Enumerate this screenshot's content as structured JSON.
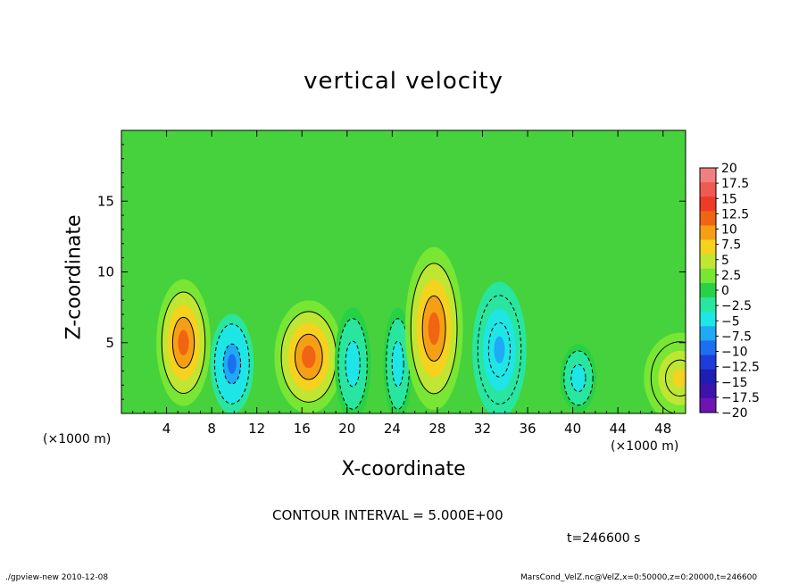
{
  "chart_data": {
    "type": "heatmap",
    "title": "vertical velocity",
    "xlabel": "X-coordinate",
    "ylabel": "Z-coordinate",
    "x_unit": "(×1000 m)",
    "y_unit": "(×1000 m)",
    "xlim": [
      0,
      50
    ],
    "ylim": [
      0,
      20
    ],
    "x_ticks": [
      "4",
      "8",
      "12",
      "16",
      "20",
      "24",
      "28",
      "32",
      "36",
      "40",
      "44",
      "48"
    ],
    "x_tick_values": [
      4,
      8,
      12,
      16,
      20,
      24,
      28,
      32,
      36,
      40,
      44,
      48
    ],
    "y_ticks": [
      "5",
      "10",
      "15"
    ],
    "y_tick_values": [
      5,
      10,
      15
    ],
    "contour_interval_text": "CONTOUR INTERVAL = 5.000E+00",
    "time_text": "t=246600 s",
    "colorbar": {
      "labels": [
        "20",
        "17.5",
        "15",
        "12.5",
        "10",
        "7.5",
        "5",
        "2.5",
        "0",
        "−2.5",
        "−5",
        "−7.5",
        "−10",
        "−12.5",
        "−15",
        "−17.5",
        "−20"
      ],
      "colors": [
        "#f08080",
        "#f05a50",
        "#ee3a28",
        "#f06414",
        "#f5a014",
        "#f5d21e",
        "#bee632",
        "#78e632",
        "#28d246",
        "#28e6a0",
        "#1ee6e6",
        "#1eaaf5",
        "#1e6ef0",
        "#1e3cdc",
        "#1e1eb4",
        "#3c14aa",
        "#6e14b4"
      ]
    },
    "features": [
      {
        "kind": "updraft",
        "x": 5.5,
        "z": 5.0,
        "peak": 12,
        "sx": 1.5,
        "sz": 2.8
      },
      {
        "kind": "downdraft",
        "x": 9.8,
        "z": 3.5,
        "peak": -10,
        "sx": 1.2,
        "sz": 2.2
      },
      {
        "kind": "updraft",
        "x": 16.6,
        "z": 4.0,
        "peak": 12,
        "sx": 1.9,
        "sz": 2.5
      },
      {
        "kind": "downdraft",
        "x": 20.5,
        "z": 3.5,
        "peak": -5,
        "sx": 1.0,
        "sz": 2.5
      },
      {
        "kind": "downdraft",
        "x": 24.5,
        "z": 3.5,
        "peak": -5,
        "sx": 0.8,
        "sz": 2.5
      },
      {
        "kind": "updraft",
        "x": 27.7,
        "z": 6.0,
        "peak": 12,
        "sx": 1.6,
        "sz": 3.6
      },
      {
        "kind": "downdraft",
        "x": 33.5,
        "z": 4.5,
        "peak": -7.5,
        "sx": 1.5,
        "sz": 3.0
      },
      {
        "kind": "downdraft",
        "x": 40.5,
        "z": 2.5,
        "peak": -5,
        "sx": 1.0,
        "sz": 1.5
      },
      {
        "kind": "updraft",
        "x": 49.5,
        "z": 2.5,
        "peak": 7.5,
        "sx": 2.0,
        "sz": 2.0
      }
    ]
  },
  "footer": {
    "left": "./gpview-new  2010-12-08",
    "right": "MarsCond_VelZ.nc@VelZ,x=0:50000,z=0:20000,t=246600"
  }
}
